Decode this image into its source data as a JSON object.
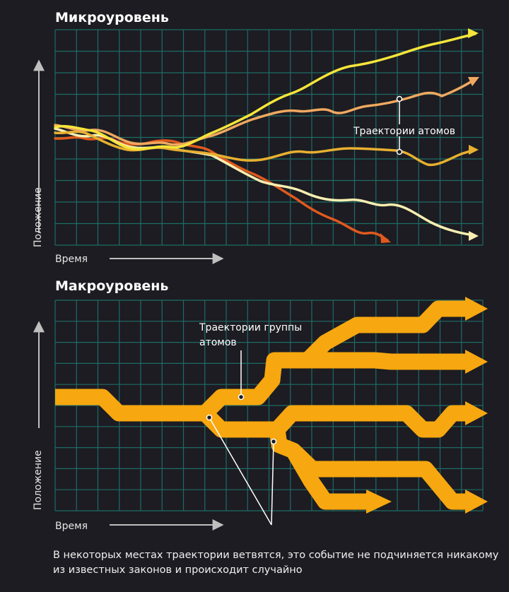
{
  "micro": {
    "title": "Микроуровень",
    "y_axis_label": "Положение",
    "x_axis_label": "Время",
    "annotation": "Траектории атомов",
    "trajectories": [
      {
        "name": "yellow",
        "color": "#f5e53a"
      },
      {
        "name": "light-orange",
        "color": "#f0a860"
      },
      {
        "name": "gold",
        "color": "#e8b030"
      },
      {
        "name": "pale",
        "color": "#f7eeb0"
      },
      {
        "name": "red",
        "color": "#e05a1e"
      }
    ]
  },
  "macro": {
    "title": "Макроуровень",
    "y_axis_label": "Положение",
    "x_axis_label": "Время",
    "annotation_line1": "Траектории группы",
    "annotation_line2": "атомов",
    "band_color": "#f7a70f"
  },
  "colors": {
    "background": "#1c1c22",
    "grid": "#1e6b66",
    "axis": "#bfbfbf"
  },
  "footnote": "В некоторых местах траектории ветвятся, это событие не подчиняется никакому из известных законов и происходит случайно"
}
